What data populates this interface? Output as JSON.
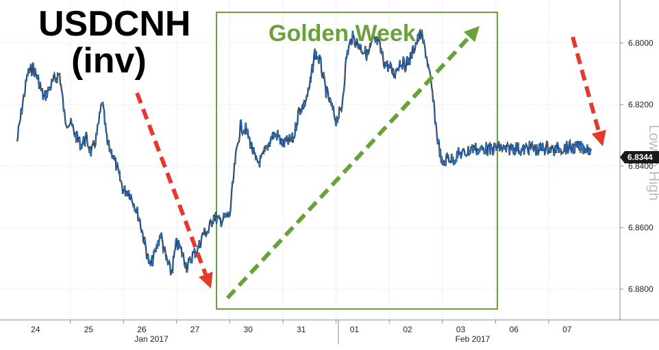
{
  "chart_data": {
    "type": "line",
    "title_line1": "USDCNH",
    "title_line2": "(inv)",
    "annotation": "Golden Week",
    "side_label": "Low to High",
    "last_value": "6.8344",
    "y_ticks": [
      "6.8000",
      "6.8200",
      "6.8400",
      "6.8600",
      "6.8800"
    ],
    "ylim": [
      6.89,
      6.786
    ],
    "y_inverted": true,
    "day_labels": [
      "24",
      "25",
      "26",
      "27",
      "30",
      "31",
      "01",
      "02",
      "03",
      "06",
      "07"
    ],
    "month_labels": [
      "Jan 2017",
      "Feb 2017"
    ],
    "grid": true,
    "series": [
      {
        "x": [
          0,
          0.1,
          0.2,
          0.3,
          0.4,
          0.5,
          0.6,
          0.7,
          0.8,
          0.9,
          1.0,
          1.1,
          1.2,
          1.3,
          1.4,
          1.5,
          1.6,
          1.7,
          1.8,
          1.9,
          2.0,
          2.1,
          2.2,
          2.3,
          2.4,
          2.5,
          2.6,
          2.7,
          2.8,
          2.9,
          3.0,
          3.1,
          3.2,
          3.3,
          3.4,
          3.5,
          3.6,
          3.7,
          3.8,
          3.9,
          4.0,
          4.1,
          4.2,
          4.3,
          4.4,
          4.5,
          4.6,
          4.7,
          4.8,
          4.9,
          5.0,
          5.1,
          5.2,
          5.3,
          5.4,
          5.5,
          5.6,
          5.7,
          5.8,
          5.9,
          6.0,
          6.1,
          6.2,
          6.3,
          6.4,
          6.5,
          6.6,
          6.7,
          6.8,
          6.9,
          7.0,
          7.1,
          7.2,
          7.3,
          7.4,
          7.5,
          7.6,
          7.7,
          7.8,
          7.9,
          8.0,
          8.1,
          8.2,
          8.3,
          8.4,
          8.5,
          8.6,
          8.7,
          8.8,
          8.9,
          9.0,
          9.1,
          9.2,
          9.3,
          9.4,
          9.5,
          9.6,
          9.7,
          9.8,
          9.9,
          10.0,
          10.1,
          10.2,
          10.3,
          10.4,
          10.5,
          10.6,
          10.7,
          10.8
        ],
        "y": [
          6.832,
          6.82,
          6.81,
          6.808,
          6.812,
          6.818,
          6.815,
          6.812,
          6.81,
          6.825,
          6.826,
          6.83,
          6.833,
          6.831,
          6.836,
          6.83,
          6.819,
          6.833,
          6.836,
          6.842,
          6.848,
          6.848,
          6.852,
          6.857,
          6.865,
          6.873,
          6.868,
          6.862,
          6.87,
          6.875,
          6.865,
          6.868,
          6.873,
          6.869,
          6.867,
          6.862,
          6.861,
          6.856,
          6.858,
          6.857,
          6.856,
          6.839,
          6.827,
          6.828,
          6.833,
          6.839,
          6.838,
          6.834,
          6.83,
          6.83,
          6.833,
          6.832,
          6.831,
          6.822,
          6.82,
          6.815,
          6.803,
          6.806,
          6.815,
          6.82,
          6.825,
          6.822,
          6.804,
          6.798,
          6.8,
          6.802,
          6.804,
          6.799,
          6.8,
          6.806,
          6.808,
          6.81,
          6.806,
          6.807,
          6.805,
          6.8,
          6.797,
          6.804,
          6.815,
          6.83,
          6.84,
          6.837,
          6.838,
          6.836,
          6.836,
          6.835,
          6.834,
          6.835,
          6.834,
          6.835,
          6.834,
          6.834,
          6.835,
          6.834,
          6.834,
          6.835,
          6.834,
          6.834,
          6.835,
          6.834,
          6.834,
          6.835,
          6.834,
          6.834,
          6.834,
          6.834,
          6.834,
          6.834,
          6.8344
        ]
      }
    ]
  }
}
